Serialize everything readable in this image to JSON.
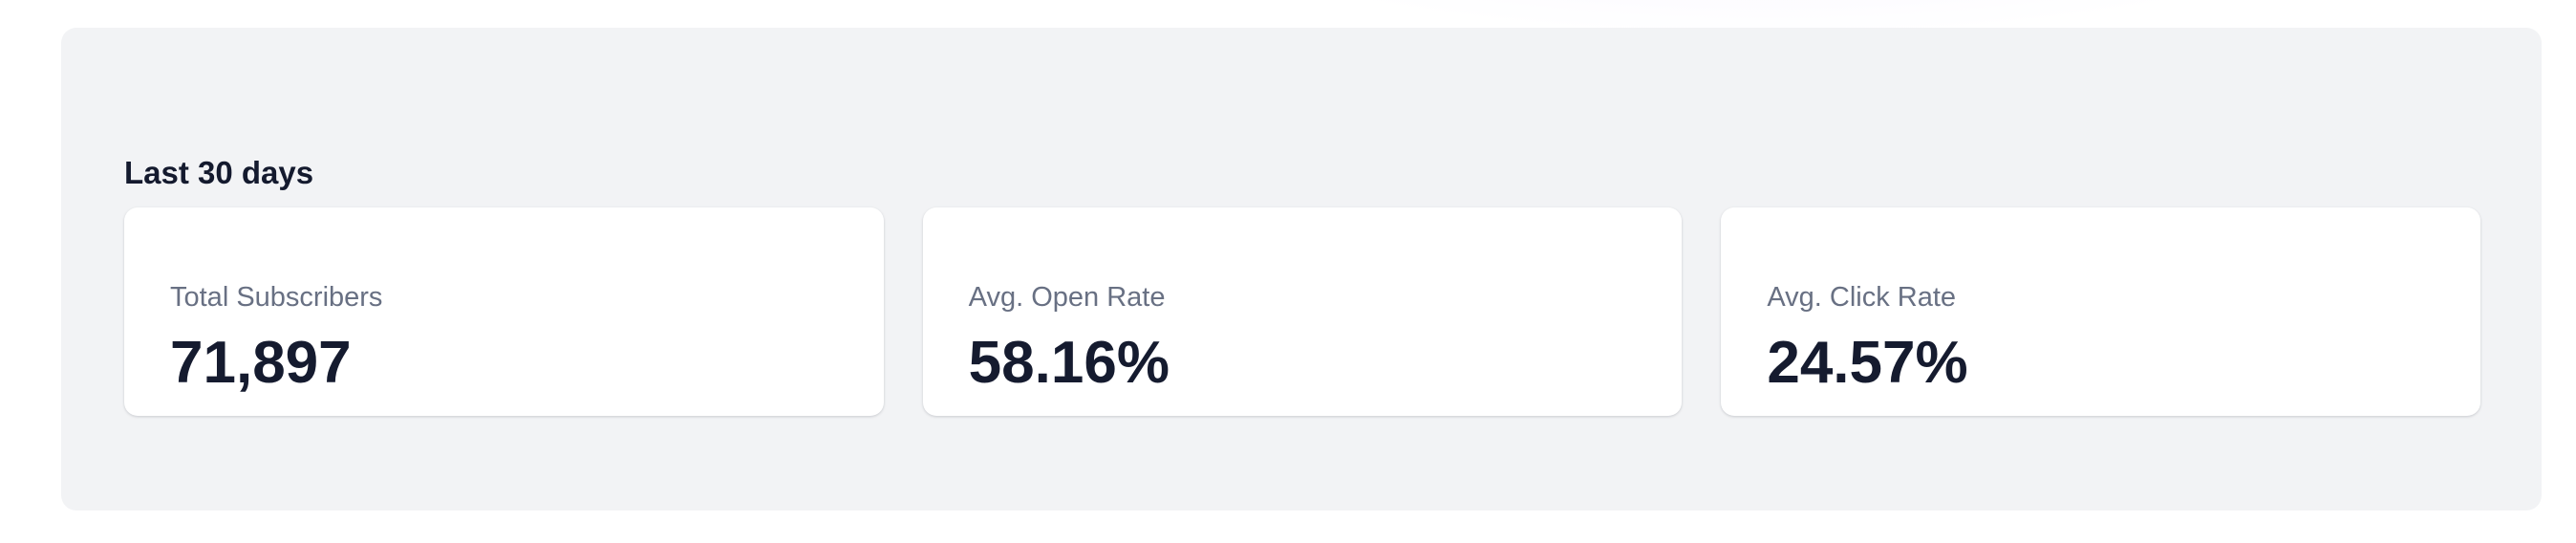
{
  "stats": {
    "period_label": "Last 30 days",
    "cards": [
      {
        "label": "Total Subscribers",
        "value": "71,897"
      },
      {
        "label": "Avg. Open Rate",
        "value": "58.16%"
      },
      {
        "label": "Avg. Click Rate",
        "value": "24.57%"
      }
    ]
  },
  "colors": {
    "panel_background": "#f2f3f5",
    "card_background": "#ffffff",
    "heading_text": "#141a2e",
    "label_text": "#687083",
    "value_text": "#151b2f"
  }
}
